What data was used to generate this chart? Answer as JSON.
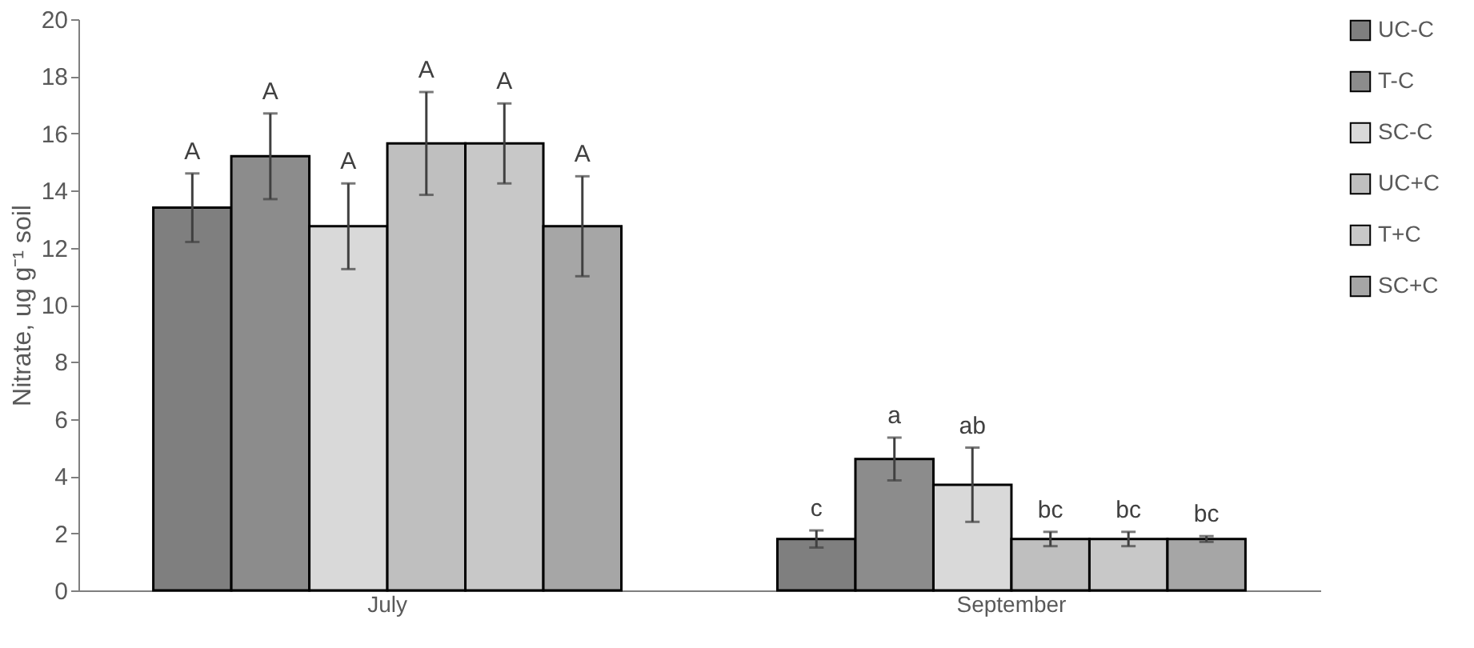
{
  "chart_data": {
    "type": "bar",
    "ylabel": "Nitrate, ug g⁻¹ soil",
    "categories": [
      "July",
      "September"
    ],
    "series": [
      {
        "name": "UC-C",
        "color": "#7f7f7f",
        "values": [
          13.4,
          1.8
        ],
        "errors": [
          1.2,
          0.3
        ],
        "value_labels": [
          "A",
          "c"
        ]
      },
      {
        "name": "T-C",
        "color": "#8c8c8c",
        "values": [
          15.2,
          4.6
        ],
        "errors": [
          1.5,
          0.75
        ],
        "value_labels": [
          "A",
          "a"
        ]
      },
      {
        "name": "SC-C",
        "color": "#d9d9d9",
        "values": [
          12.75,
          3.7
        ],
        "errors": [
          1.5,
          1.3
        ],
        "value_labels": [
          "A",
          "ab"
        ]
      },
      {
        "name": "UC+C",
        "color": "#bfbfbf",
        "values": [
          15.65,
          1.8
        ],
        "errors": [
          1.8,
          0.25
        ],
        "value_labels": [
          "A",
          "bc"
        ]
      },
      {
        "name": "T+C",
        "color": "#c8c8c8",
        "values": [
          15.65,
          1.8
        ],
        "errors": [
          1.4,
          0.25
        ],
        "value_labels": [
          "A",
          "bc"
        ]
      },
      {
        "name": "SC+C",
        "color": "#a6a6a6",
        "values": [
          12.75,
          1.8
        ],
        "errors": [
          1.75,
          0.1
        ],
        "value_labels": [
          "A",
          "bc"
        ]
      }
    ],
    "ylim": [
      0,
      20
    ],
    "yticks": [
      0,
      2,
      4,
      6,
      8,
      10,
      12,
      14,
      16,
      18,
      20
    ],
    "grid": false,
    "legend": "right"
  }
}
